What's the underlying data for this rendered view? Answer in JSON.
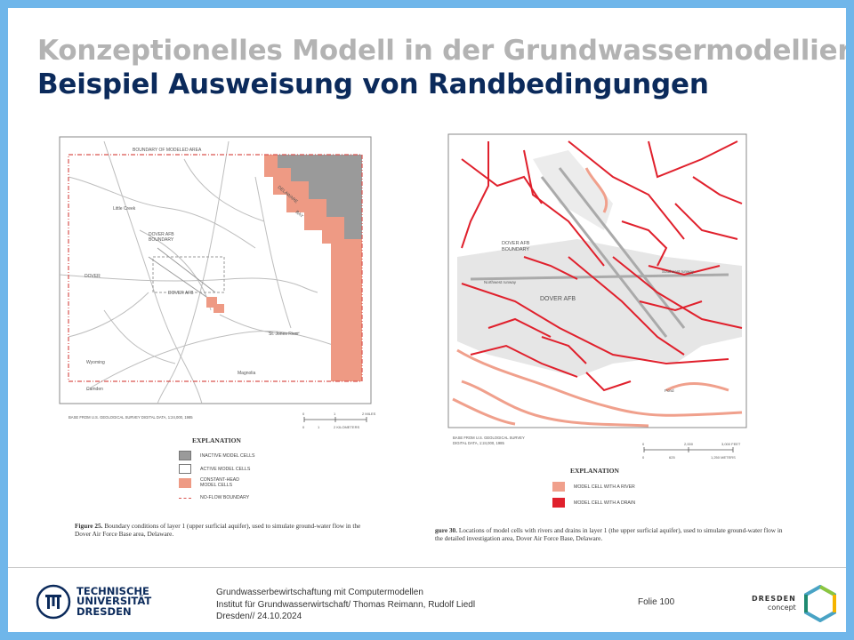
{
  "slide": {
    "title_line1": "Konzeptionelles Modell in der Grundwassermodellierung",
    "title_line2": "Beispiel Ausweisung von Randbedingungen"
  },
  "figure_left": {
    "map_labels": {
      "boundary": "BOUNDARY OF MODELED AREA",
      "little_creek": "Little Creek",
      "delaware_bay": "DELAWARE",
      "bay": "BAY",
      "dover_afb_boundary_1": "DOVER AFB",
      "dover_afb_boundary_2": "BOUNDARY",
      "dover": "DOVER",
      "dover_afb": "DOVER AFB",
      "st_jones": "St. Jones River",
      "wyoming": "Wyoming",
      "camden": "Camden",
      "magnolia": "Magnolia"
    },
    "base_note": "BASE FROM U.S. GEOLOGICAL SURVEY DIGITAL DATA, 1:24,000, 1985",
    "scale_top": [
      "0",
      "1",
      "2 MILES"
    ],
    "scale_bottom": [
      "0",
      "1",
      "2 KILOMETERS"
    ],
    "legend_title": "EXPLANATION",
    "legend": [
      {
        "label": "INACTIVE MODEL CELLS",
        "color": "#9a9a9a"
      },
      {
        "label": "ACTIVE MODEL CELLS",
        "color": "#ffffff"
      },
      {
        "label": "CONSTANT-HEAD MODEL CELLS",
        "color": "#ee9a84"
      },
      {
        "label": "NO-FLOW BOUNDARY",
        "color": "#d9534f"
      }
    ],
    "caption_bold": "Figure 25.",
    "caption": "Boundary conditions of layer 1 (upper surficial aquifer), used to simulate ground-water flow in the Dover Air Force Base area, Delaware."
  },
  "figure_right": {
    "map_labels": {
      "dover_afb_boundary_1": "DOVER AFB",
      "dover_afb_boundary_2": "BOUNDARY",
      "dover_afb": "DOVER AFB",
      "northwest_runway": "Northwest runway",
      "southeast_runway": "Southeast runway",
      "ponds": "Pond"
    },
    "base_note_1": "BASE FROM U.S. GEOLOGICAL SURVEY",
    "base_note_2": "DIGITAL DATA, 1:24,000, 1985",
    "scale_top": [
      "0",
      "2,000",
      "3,000 FEET"
    ],
    "scale_bottom": [
      "0",
      "625",
      "1,250 METERS"
    ],
    "legend_title": "EXPLANATION",
    "legend": [
      {
        "label": "MODEL CELL WITH A RIVER",
        "color": "#f0a08c"
      },
      {
        "label": "MODEL CELL WITH A DRAIN",
        "color": "#e0202c"
      }
    ],
    "caption_bold": "gure 30.",
    "caption": "Locations of model cells with rivers and drains in layer 1 (the upper surficial aquifer), used to simulate ground-water flow in the detailed investigation area, Dover Air Force Base, Delaware."
  },
  "footer": {
    "tu_line1": "TECHNISCHE",
    "tu_line2": "UNIVERSITÄT",
    "tu_line3": "DRESDEN",
    "line1": "Grundwasserbewirtschaftung mit Computermodellen",
    "line2": "Institut für Grundwasserwirtschaft/ Thomas Reimann, Rudolf Liedl",
    "line3": "Dresden// 24.10.2024",
    "folie": "Folie 100",
    "dd_line1": "DRESDEN",
    "dd_line2": "concept"
  }
}
